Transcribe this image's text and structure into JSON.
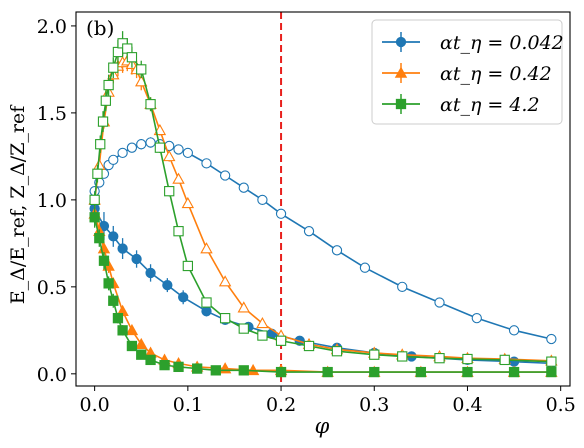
{
  "chart_data": {
    "type": "line",
    "panel_label": "(b)",
    "xlabel": "φ",
    "ylabel": "E_Δ/E_ref, Z_Δ/Z_ref",
    "xlim": [
      -0.02,
      0.51
    ],
    "ylim": [
      -0.07,
      2.08
    ],
    "xticks": [
      "0.0",
      "0.1",
      "0.2",
      "0.3",
      "0.4",
      "0.5"
    ],
    "yticks": [
      "0.0",
      "0.5",
      "1.0",
      "1.5",
      "2.0"
    ],
    "xtick_values": [
      0.0,
      0.1,
      0.2,
      0.3,
      0.4,
      0.5
    ],
    "ytick_values": [
      0.0,
      0.5,
      1.0,
      1.5,
      2.0
    ],
    "vline": {
      "x": 0.2,
      "color": "#e8201c",
      "style": "dashed"
    },
    "legend_position": "top-right",
    "series": [
      {
        "name": "αt_η = 0.042",
        "color": "#1f77b4",
        "marker": "circle",
        "E": {
          "x": [
            0.0,
            0.01,
            0.02,
            0.03,
            0.045,
            0.06,
            0.078,
            0.095,
            0.12,
            0.14,
            0.165,
            0.19,
            0.22,
            0.26,
            0.3,
            0.34,
            0.4,
            0.45,
            0.49
          ],
          "y": [
            0.95,
            0.85,
            0.79,
            0.72,
            0.66,
            0.58,
            0.51,
            0.44,
            0.36,
            0.31,
            0.27,
            0.23,
            0.19,
            0.15,
            0.12,
            0.1,
            0.08,
            0.07,
            0.06
          ],
          "err": [
            0.1,
            0.08,
            0.06,
            0.06,
            0.05,
            0.05,
            0.04,
            0.04,
            0.03,
            0.02,
            0.02,
            0.02,
            0.01,
            0.01,
            0.01,
            0.0,
            0.0,
            0.0,
            0.0
          ]
        },
        "Z": {
          "x": [
            0.0,
            0.005,
            0.01,
            0.015,
            0.02,
            0.03,
            0.04,
            0.05,
            0.06,
            0.07,
            0.08,
            0.09,
            0.1,
            0.12,
            0.14,
            0.16,
            0.18,
            0.2,
            0.23,
            0.26,
            0.29,
            0.33,
            0.37,
            0.41,
            0.45,
            0.49
          ],
          "y": [
            1.05,
            1.1,
            1.15,
            1.2,
            1.23,
            1.27,
            1.3,
            1.32,
            1.33,
            1.32,
            1.31,
            1.29,
            1.27,
            1.21,
            1.14,
            1.07,
            1.0,
            0.92,
            0.82,
            0.71,
            0.61,
            0.5,
            0.41,
            0.32,
            0.25,
            0.2
          ],
          "err": [
            0.0,
            0.0,
            0.0,
            0.0,
            0.0,
            0.02,
            0.02,
            0.03,
            0.03,
            0.02,
            0.02,
            0.0,
            0.0,
            0.0,
            0.0,
            0.0,
            0.0,
            0.0,
            0.0,
            0.0,
            0.0,
            0.0,
            0.0,
            0.0,
            0.0,
            0.0
          ]
        }
      },
      {
        "name": "αt_η = 0.42",
        "color": "#ff7f0e",
        "marker": "triangle",
        "E": {
          "x": [
            0.0,
            0.005,
            0.01,
            0.015,
            0.02,
            0.03,
            0.04,
            0.05,
            0.06,
            0.075,
            0.09,
            0.11,
            0.14,
            0.17,
            0.2,
            0.25,
            0.3,
            0.35,
            0.4,
            0.45,
            0.49
          ],
          "y": [
            0.92,
            0.82,
            0.72,
            0.62,
            0.52,
            0.36,
            0.25,
            0.17,
            0.12,
            0.08,
            0.06,
            0.04,
            0.03,
            0.02,
            0.02,
            0.01,
            0.01,
            0.01,
            0.01,
            0.01,
            0.01
          ],
          "err": [
            0.06,
            0.05,
            0.04,
            0.04,
            0.03,
            0.03,
            0.02,
            0.02,
            0.01,
            0.01,
            0.01,
            0.0,
            0.0,
            0.0,
            0.0,
            0.0,
            0.0,
            0.0,
            0.0,
            0.0,
            0.0
          ]
        },
        "Z": {
          "x": [
            0.0,
            0.005,
            0.01,
            0.015,
            0.02,
            0.025,
            0.03,
            0.035,
            0.04,
            0.045,
            0.05,
            0.06,
            0.07,
            0.08,
            0.09,
            0.1,
            0.12,
            0.14,
            0.16,
            0.18,
            0.2,
            0.23,
            0.26,
            0.3,
            0.33,
            0.37,
            0.4,
            0.44,
            0.49
          ],
          "y": [
            1.0,
            1.2,
            1.45,
            1.62,
            1.72,
            1.77,
            1.79,
            1.8,
            1.78,
            1.75,
            1.68,
            1.55,
            1.4,
            1.25,
            1.12,
            0.98,
            0.72,
            0.53,
            0.38,
            0.29,
            0.22,
            0.17,
            0.14,
            0.12,
            0.11,
            0.1,
            0.09,
            0.085,
            0.075
          ],
          "err": [
            0.02,
            0.03,
            0.04,
            0.05,
            0.05,
            0.06,
            0.06,
            0.06,
            0.06,
            0.05,
            0.05,
            0.04,
            0.03,
            0.03,
            0.02,
            0.02,
            0.01,
            0.01,
            0.01,
            0.0,
            0.0,
            0.0,
            0.0,
            0.0,
            0.0,
            0.0,
            0.0,
            0.0,
            0.0
          ]
        }
      },
      {
        "name": "αt_η = 4.2",
        "color": "#2ca02c",
        "marker": "square",
        "E": {
          "x": [
            0.0,
            0.005,
            0.01,
            0.015,
            0.02,
            0.025,
            0.03,
            0.04,
            0.05,
            0.06,
            0.075,
            0.09,
            0.11,
            0.13,
            0.16,
            0.2,
            0.25,
            0.3,
            0.35,
            0.4,
            0.45,
            0.49
          ],
          "y": [
            0.9,
            0.78,
            0.65,
            0.52,
            0.42,
            0.32,
            0.25,
            0.16,
            0.11,
            0.08,
            0.05,
            0.04,
            0.03,
            0.02,
            0.02,
            0.01,
            0.01,
            0.01,
            0.01,
            0.01,
            0.01,
            0.01
          ],
          "err": [
            0.06,
            0.05,
            0.05,
            0.04,
            0.04,
            0.03,
            0.03,
            0.02,
            0.02,
            0.01,
            0.01,
            0.0,
            0.0,
            0.0,
            0.0,
            0.0,
            0.0,
            0.0,
            0.0,
            0.0,
            0.0,
            0.0
          ]
        },
        "Z": {
          "x": [
            0.0,
            0.003,
            0.006,
            0.009,
            0.012,
            0.015,
            0.02,
            0.025,
            0.03,
            0.035,
            0.04,
            0.05,
            0.06,
            0.07,
            0.08,
            0.09,
            0.1,
            0.12,
            0.14,
            0.16,
            0.18,
            0.2,
            0.23,
            0.26,
            0.3,
            0.33,
            0.37,
            0.4,
            0.44,
            0.49
          ],
          "y": [
            1.0,
            1.15,
            1.32,
            1.45,
            1.57,
            1.66,
            1.76,
            1.85,
            1.9,
            1.87,
            1.82,
            1.75,
            1.55,
            1.3,
            1.05,
            0.82,
            0.62,
            0.41,
            0.32,
            0.26,
            0.22,
            0.19,
            0.16,
            0.13,
            0.11,
            0.1,
            0.09,
            0.085,
            0.08,
            0.07
          ],
          "err": [
            0.04,
            0.05,
            0.05,
            0.06,
            0.06,
            0.06,
            0.06,
            0.07,
            0.07,
            0.06,
            0.06,
            0.05,
            0.04,
            0.03,
            0.03,
            0.02,
            0.02,
            0.01,
            0.01,
            0.0,
            0.0,
            0.0,
            0.0,
            0.0,
            0.0,
            0.0,
            0.0,
            0.0,
            0.0,
            0.0
          ]
        }
      }
    ]
  }
}
